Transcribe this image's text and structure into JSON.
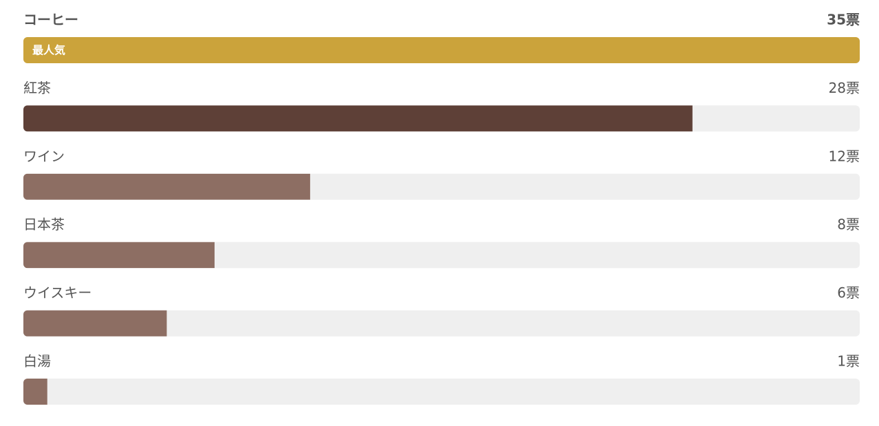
{
  "chart_data": {
    "type": "bar",
    "orientation": "horizontal",
    "categories": [
      "コーヒー",
      "紅茶",
      "ワイン",
      "日本茶",
      "ウイスキー",
      "白湯"
    ],
    "values": [
      35,
      28,
      12,
      8,
      6,
      1
    ],
    "value_labels": [
      "35票",
      "28票",
      "12票",
      "8票",
      "6票",
      "1票"
    ],
    "colors": [
      "#cba33b",
      "#5e4037",
      "#8d6e63",
      "#8d6e63",
      "#8d6e63",
      "#8d6e63"
    ],
    "track_color": "#efefef",
    "badge": "最人気",
    "xlim": [
      0,
      35
    ]
  }
}
